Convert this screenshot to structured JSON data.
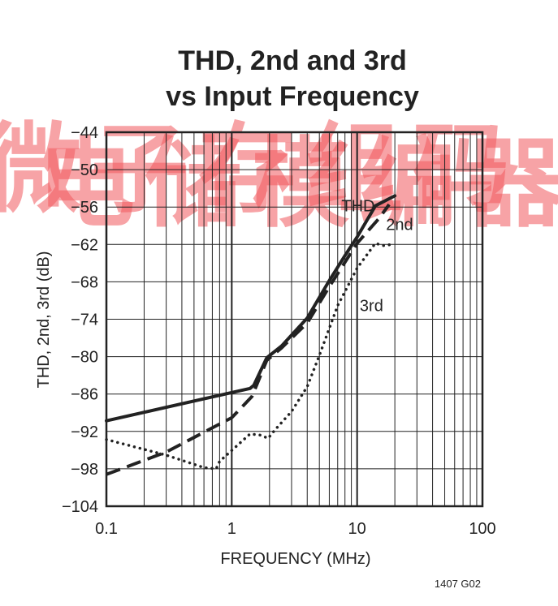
{
  "chart_data": {
    "type": "line",
    "title_lines": [
      "THD, 2nd and 3rd",
      "vs Input Frequency"
    ],
    "xlabel": "FREQUENCY (MHz)",
    "ylabel": "THD, 2nd, 3rd (dB)",
    "xscale": "log",
    "xlim": [
      0.1,
      100
    ],
    "ylim": [
      -104,
      -44
    ],
    "x_ticks": [
      0.1,
      1,
      10,
      100
    ],
    "x_tick_labels": [
      "0.1",
      "1",
      "10",
      "100"
    ],
    "y_ticks": [
      -104,
      -98,
      -92,
      -86,
      -80,
      -74,
      -68,
      -62,
      -56,
      -50,
      -44
    ],
    "y_tick_labels": [
      "−104",
      "−98",
      "−92",
      "−86",
      "−80",
      "−74",
      "−68",
      "−62",
      "−56",
      "−50",
      "−44"
    ],
    "grid": true,
    "series": [
      {
        "name": "THD",
        "style": "solid",
        "color": "#222222",
        "points": [
          [
            0.1,
            -90.3
          ],
          [
            1.4,
            -85.1
          ],
          [
            1.5,
            -84.6
          ],
          [
            1.9,
            -80.2
          ],
          [
            2.5,
            -78.3
          ],
          [
            4.0,
            -73.8
          ],
          [
            6.0,
            -67.8
          ],
          [
            8.0,
            -63.8
          ],
          [
            10,
            -60.8
          ],
          [
            14,
            -55.8
          ],
          [
            20,
            -54.2
          ]
        ]
      },
      {
        "name": "2nd",
        "style": "dashed",
        "color": "#222222",
        "points": [
          [
            0.1,
            -98.9
          ],
          [
            0.3,
            -95.3
          ],
          [
            1.0,
            -89.8
          ],
          [
            1.45,
            -86.4
          ],
          [
            1.9,
            -80.6
          ],
          [
            2.5,
            -78.6
          ],
          [
            4.0,
            -74.6
          ],
          [
            6.0,
            -68.8
          ],
          [
            10,
            -61.8
          ],
          [
            15,
            -57.8
          ],
          [
            18,
            -55.6
          ]
        ]
      },
      {
        "name": "3rd",
        "style": "dotted",
        "color": "#222222",
        "points": [
          [
            0.1,
            -93.3
          ],
          [
            0.3,
            -95.8
          ],
          [
            0.6,
            -97.8
          ],
          [
            0.75,
            -98.0
          ],
          [
            0.8,
            -96.8
          ],
          [
            1.1,
            -94.3
          ],
          [
            1.4,
            -92.4
          ],
          [
            1.7,
            -92.6
          ],
          [
            1.95,
            -93.1
          ],
          [
            2.2,
            -91.8
          ],
          [
            3.0,
            -88.8
          ],
          [
            4.0,
            -84.8
          ],
          [
            5.0,
            -79.8
          ],
          [
            7.0,
            -71.8
          ],
          [
            10,
            -65.8
          ],
          [
            14,
            -61.8
          ],
          [
            16,
            -62.2
          ],
          [
            19,
            -62.0
          ]
        ]
      }
    ],
    "annotations": [
      {
        "text": "THD",
        "x": 7.5,
        "y": -55.8
      },
      {
        "text": "2nd",
        "x": 17,
        "y": -58.8
      },
      {
        "text": "3rd",
        "x": 10.5,
        "y": -71.8
      }
    ],
    "figure_id": "1407 G02"
  },
  "watermark": {
    "chars": [
      "微",
      "电",
      "子",
      "储",
      "存",
      "模",
      "组",
      "编",
      "码",
      "器"
    ],
    "color": "#f2595e"
  }
}
